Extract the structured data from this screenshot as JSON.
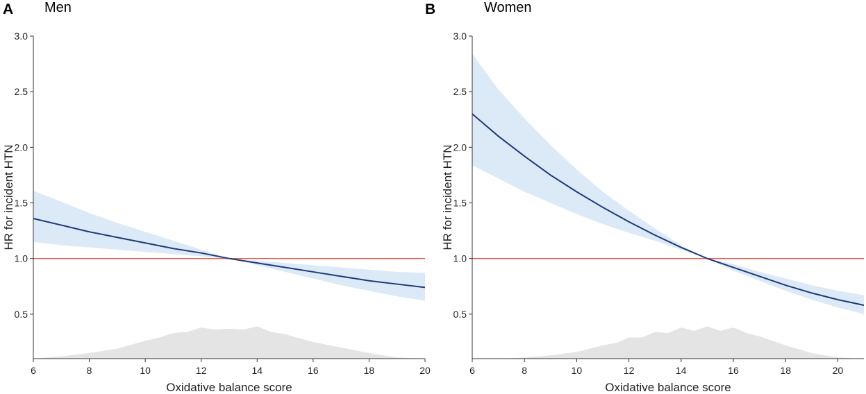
{
  "colors": {
    "ci_band": "#dce9f7",
    "curve": "#1c3a7a",
    "reference_line": "#e8574a",
    "density": "#e4e4e4",
    "axis": "#333333"
  },
  "chart_data": [
    {
      "type": "line",
      "panel_letter": "A",
      "title": "Men",
      "xlabel": "Oxidative balance score",
      "ylabel": "HR for incident HTN",
      "xlim": [
        6,
        20
      ],
      "ylim": [
        0.1,
        3.0
      ],
      "x_ticks": [
        6,
        8,
        10,
        12,
        14,
        16,
        18,
        20
      ],
      "y_ticks": [
        0.5,
        1.0,
        1.5,
        2.0,
        2.5,
        3.0
      ],
      "y_tick_labels": [
        "0.5",
        "1.0",
        "1.5",
        "2.0",
        "2.5",
        "3.0"
      ],
      "reference_hr": 1.0,
      "series": [
        {
          "name": "HR",
          "x": [
            6,
            7,
            8,
            9,
            10,
            11,
            12,
            13,
            14,
            15,
            16,
            17,
            18,
            19,
            20
          ],
          "values": [
            1.36,
            1.3,
            1.24,
            1.19,
            1.14,
            1.09,
            1.05,
            1.0,
            0.96,
            0.92,
            0.88,
            0.84,
            0.8,
            0.77,
            0.74
          ]
        },
        {
          "name": "95% CI lower",
          "x": [
            6,
            7,
            8,
            9,
            10,
            11,
            12,
            13,
            14,
            15,
            16,
            17,
            18,
            19,
            20
          ],
          "values": [
            1.15,
            1.12,
            1.1,
            1.08,
            1.06,
            1.04,
            1.02,
            1.0,
            0.94,
            0.88,
            0.82,
            0.76,
            0.71,
            0.66,
            0.62
          ]
        },
        {
          "name": "95% CI upper",
          "x": [
            6,
            7,
            8,
            9,
            10,
            11,
            12,
            13,
            14,
            15,
            16,
            17,
            18,
            19,
            20
          ],
          "values": [
            1.61,
            1.51,
            1.41,
            1.32,
            1.24,
            1.16,
            1.08,
            1.0,
            0.98,
            0.96,
            0.94,
            0.92,
            0.9,
            0.88,
            0.87
          ]
        }
      ],
      "density": {
        "x": [
          6,
          7,
          8,
          9,
          10,
          10.5,
          11,
          11.5,
          12,
          12.5,
          13,
          13.5,
          14,
          14.5,
          15,
          16,
          17,
          18,
          19,
          20
        ],
        "values": [
          0.1,
          0.12,
          0.15,
          0.19,
          0.26,
          0.29,
          0.33,
          0.34,
          0.38,
          0.36,
          0.37,
          0.36,
          0.39,
          0.34,
          0.32,
          0.25,
          0.2,
          0.15,
          0.11,
          0.1
        ]
      }
    },
    {
      "type": "line",
      "panel_letter": "B",
      "title": "Women",
      "xlabel": "Oxidative balance score",
      "ylabel": "HR for incident HTN",
      "xlim": [
        6,
        21
      ],
      "ylim": [
        0.1,
        3.0
      ],
      "x_ticks": [
        6,
        8,
        10,
        12,
        14,
        16,
        18,
        20
      ],
      "y_ticks": [
        0.5,
        1.0,
        1.5,
        2.0,
        2.5,
        3.0
      ],
      "y_tick_labels": [
        "0.5",
        "1.0",
        "1.5",
        "2.0",
        "2.5",
        "3.0"
      ],
      "reference_hr": 1.0,
      "series": [
        {
          "name": "HR",
          "x": [
            6,
            7,
            8,
            9,
            10,
            11,
            12,
            13,
            14,
            15,
            16,
            17,
            18,
            19,
            20,
            21
          ],
          "values": [
            2.3,
            2.1,
            1.92,
            1.75,
            1.6,
            1.46,
            1.33,
            1.21,
            1.1,
            1.0,
            0.92,
            0.84,
            0.76,
            0.69,
            0.63,
            0.58
          ]
        },
        {
          "name": "95% CI lower",
          "x": [
            6,
            7,
            8,
            9,
            10,
            11,
            12,
            13,
            14,
            15,
            16,
            17,
            18,
            19,
            20,
            21
          ],
          "values": [
            1.84,
            1.72,
            1.6,
            1.5,
            1.4,
            1.31,
            1.23,
            1.16,
            1.08,
            1.0,
            0.89,
            0.8,
            0.71,
            0.63,
            0.56,
            0.5
          ]
        },
        {
          "name": "95% CI upper",
          "x": [
            6,
            7,
            8,
            9,
            10,
            11,
            12,
            13,
            14,
            15,
            16,
            17,
            18,
            19,
            20,
            21
          ],
          "values": [
            2.84,
            2.52,
            2.26,
            2.02,
            1.8,
            1.6,
            1.43,
            1.27,
            1.12,
            1.0,
            0.95,
            0.88,
            0.82,
            0.76,
            0.71,
            0.67
          ]
        }
      ],
      "density": {
        "x": [
          6,
          7,
          8,
          9,
          10,
          10.5,
          11,
          11.5,
          12,
          12.5,
          13,
          13.5,
          14,
          14.5,
          15,
          15.5,
          16,
          16.5,
          17,
          18,
          19,
          20,
          21
        ],
        "values": [
          0.1,
          0.1,
          0.11,
          0.13,
          0.16,
          0.19,
          0.22,
          0.24,
          0.29,
          0.29,
          0.34,
          0.33,
          0.38,
          0.35,
          0.39,
          0.35,
          0.38,
          0.33,
          0.3,
          0.22,
          0.15,
          0.11,
          0.1
        ]
      }
    }
  ]
}
